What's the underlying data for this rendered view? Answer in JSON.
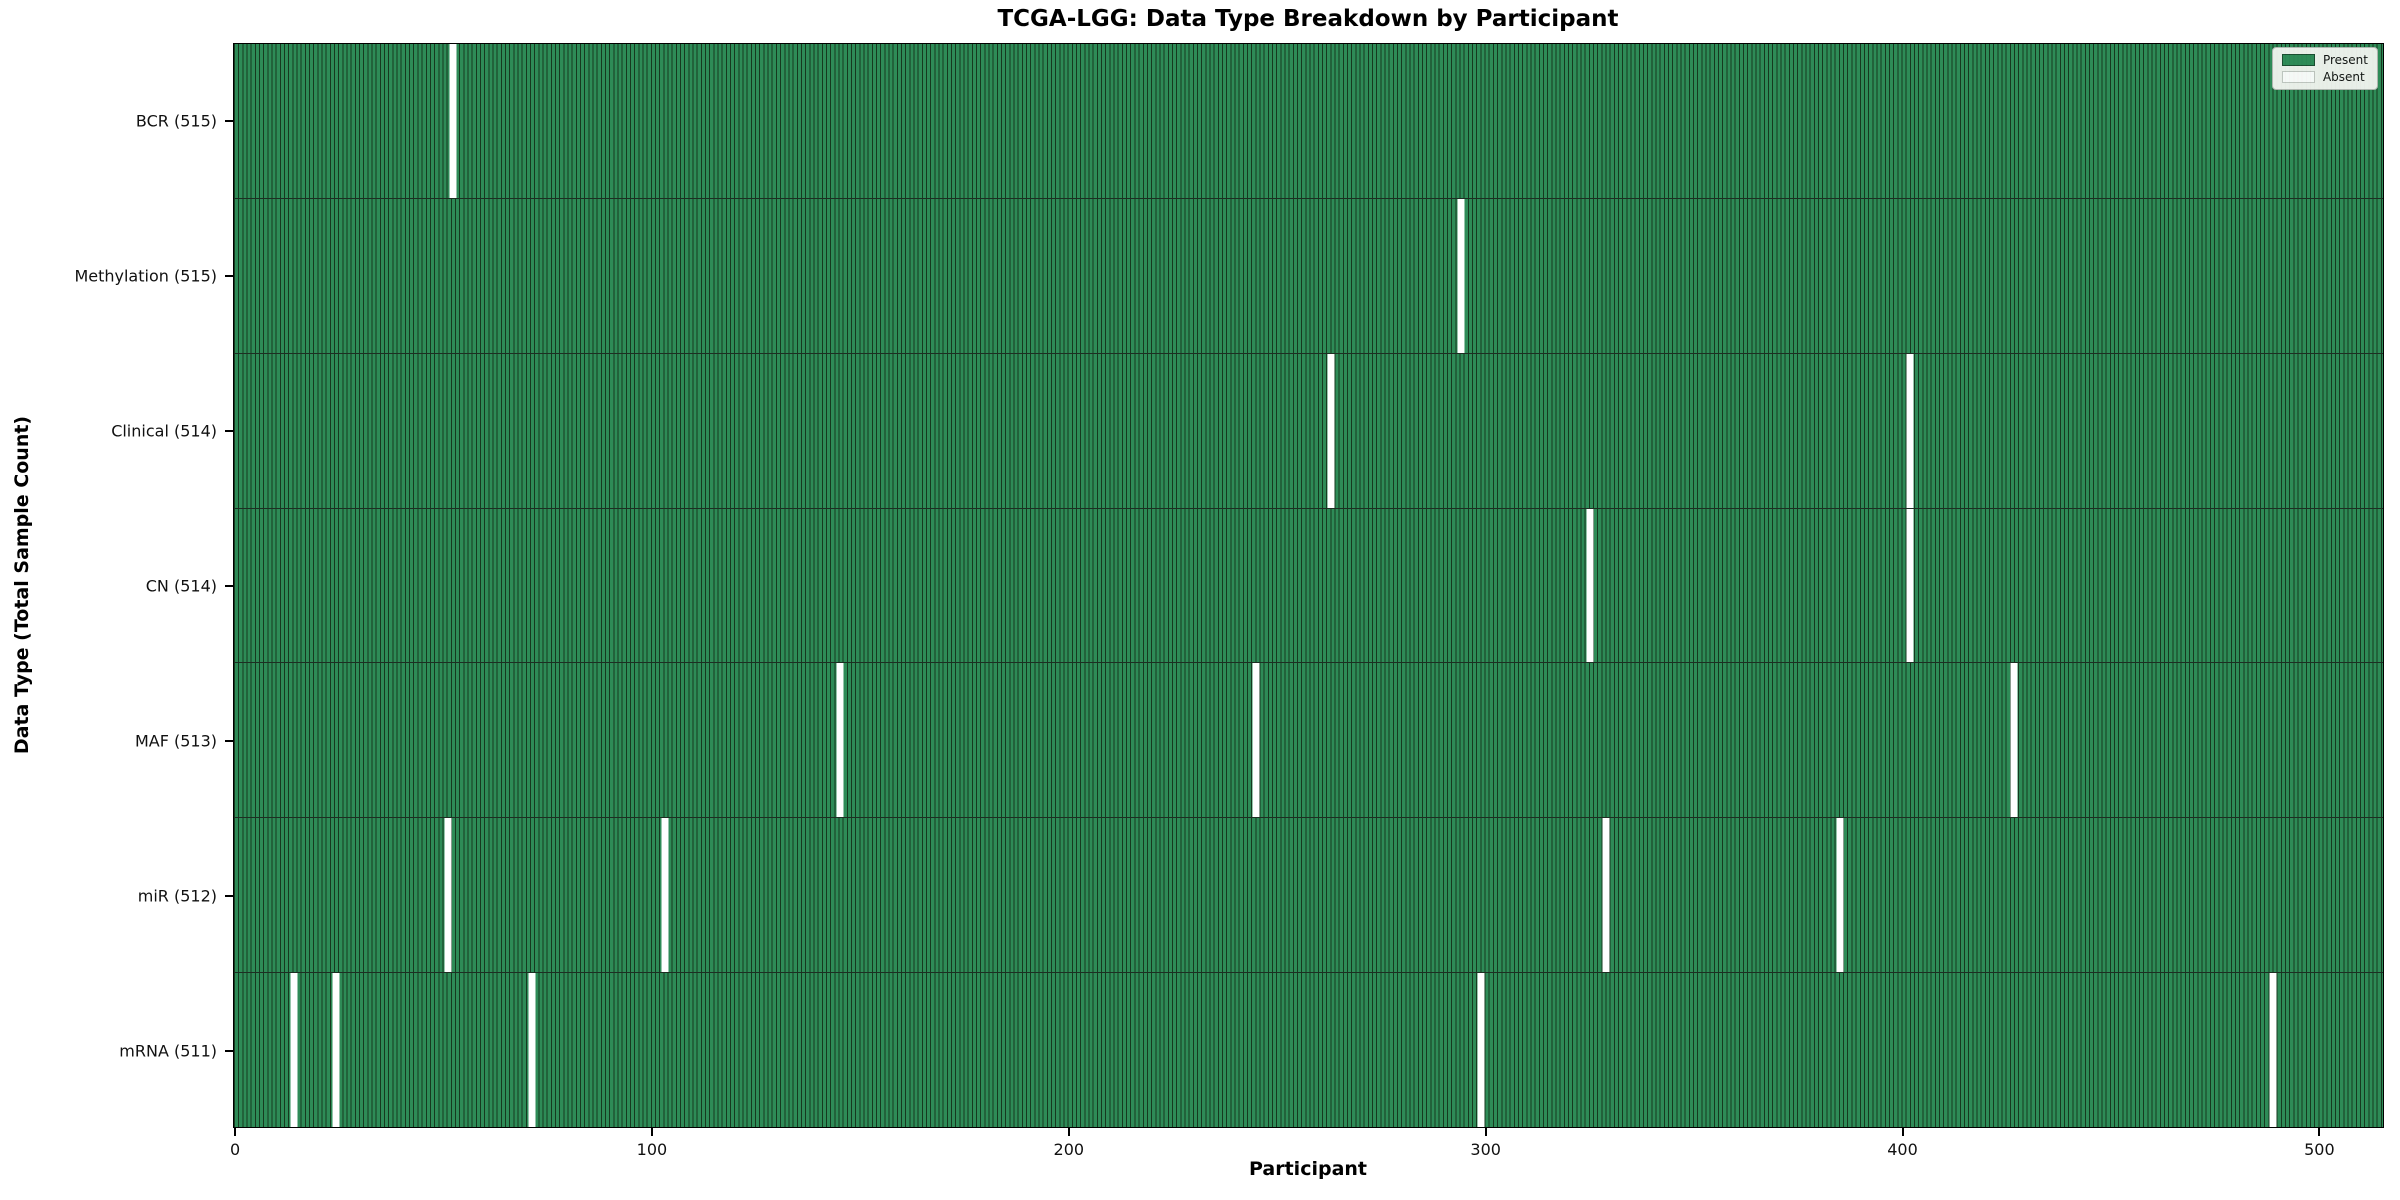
{
  "chart_data": {
    "type": "heatmap",
    "title": "TCGA-LGG: Data Type Breakdown by Participant",
    "xlabel": "Participant",
    "ylabel": "Data Type (Total Sample Count)",
    "x_ticks": [
      0,
      100,
      200,
      300,
      400,
      500
    ],
    "x_range": [
      -0.5,
      515.5
    ],
    "total_participants": 516,
    "grid": false,
    "legend": {
      "position": "upper-right",
      "entries": [
        {
          "label": "Present",
          "color": "#2e8b57"
        },
        {
          "label": "Absent",
          "color": "#ffffff"
        }
      ]
    },
    "rows": [
      {
        "label": "BCR (515)",
        "data_type": "BCR",
        "present_count": 515,
        "absent_participants": [
          52
        ]
      },
      {
        "label": "Methylation (515)",
        "data_type": "Methylation",
        "present_count": 515,
        "absent_participants": [
          294
        ]
      },
      {
        "label": "Clinical (514)",
        "data_type": "Clinical",
        "present_count": 514,
        "absent_participants": [
          263,
          402
        ]
      },
      {
        "label": "CN (514)",
        "data_type": "CN",
        "present_count": 514,
        "absent_participants": [
          325,
          402
        ]
      },
      {
        "label": "MAF (513)",
        "data_type": "MAF",
        "present_count": 513,
        "absent_participants": [
          145,
          245,
          427
        ]
      },
      {
        "label": "miR (512)",
        "data_type": "miR",
        "present_count": 512,
        "absent_participants": [
          51,
          103,
          329,
          385
        ]
      },
      {
        "label": "mRNA (511)",
        "data_type": "mRNA",
        "present_count": 511,
        "absent_participants": [
          14,
          24,
          71,
          299,
          489
        ]
      }
    ],
    "colors": {
      "present": "#2e8b57",
      "bar_edge": "#16391f",
      "absent": "#ffffff",
      "legend_bg": "#f2f5f0",
      "legend_border": "#b5bab5",
      "spine": "#000000"
    }
  }
}
